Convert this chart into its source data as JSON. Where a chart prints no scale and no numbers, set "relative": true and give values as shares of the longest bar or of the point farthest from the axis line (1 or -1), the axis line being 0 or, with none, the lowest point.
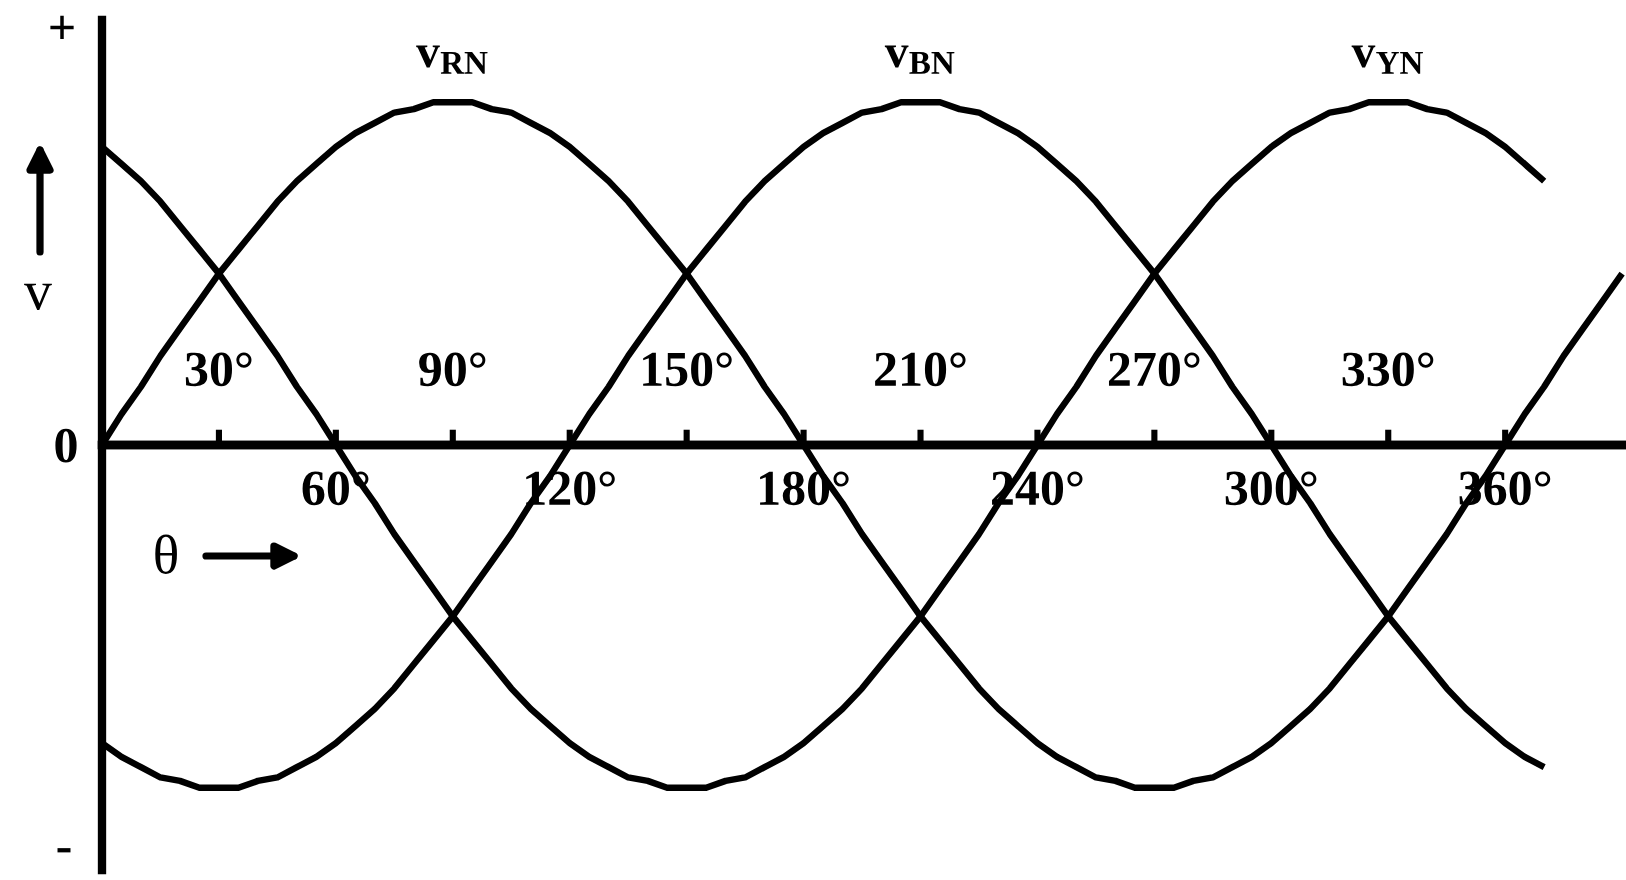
{
  "chart_data": {
    "type": "line",
    "xlabel": "θ",
    "ylabel": "v",
    "relative": true,
    "xlim": [
      0,
      391
    ],
    "xticks": [
      {
        "value": 60,
        "label": "60°"
      },
      {
        "value": 120,
        "label": "120°"
      },
      {
        "value": 180,
        "label": "180°"
      },
      {
        "value": 240,
        "label": "240°"
      },
      {
        "value": 300,
        "label": "300°"
      },
      {
        "value": 360,
        "label": "360°"
      }
    ],
    "x2lim": [
      0,
      391
    ],
    "x2ticks": [
      {
        "value": 30,
        "label": "30°"
      },
      {
        "value": 90,
        "label": "90°"
      },
      {
        "value": 150,
        "label": "150°"
      },
      {
        "value": 210,
        "label": "210°"
      },
      {
        "value": 270,
        "label": "270°"
      },
      {
        "value": 330,
        "label": "330°"
      }
    ],
    "x": [
      0,
      5,
      10,
      15,
      20,
      25,
      30,
      35,
      40,
      45,
      50,
      55,
      60,
      65,
      70,
      75,
      80,
      85,
      90,
      95,
      100,
      105,
      110,
      115,
      120,
      125,
      130,
      135,
      140,
      145,
      150,
      155,
      160,
      165,
      170,
      175,
      180,
      185,
      190,
      195,
      200,
      205,
      210,
      215,
      220,
      225,
      230,
      235,
      240,
      245,
      250,
      255,
      260,
      265,
      270,
      275,
      280,
      285,
      290,
      295,
      300,
      305,
      310,
      315,
      320,
      325,
      330,
      335,
      340,
      345,
      350,
      355,
      360,
      365,
      370,
      375,
      380,
      385,
      390
    ],
    "series": [
      {
        "name": "v$_{RN}$",
        "color": "#000000",
        "values": [
          0,
          0.09,
          0.17,
          0.26,
          0.34,
          0.42,
          0.5,
          0.57,
          0.64,
          0.71,
          0.77,
          0.82,
          0.87,
          0.91,
          0.94,
          0.97,
          0.98,
          1,
          1,
          1,
          0.98,
          0.97,
          0.94,
          0.91,
          0.87,
          0.82,
          0.77,
          0.71,
          0.64,
          0.57,
          0.5,
          0.42,
          0.34,
          0.26,
          0.17,
          0.09,
          0,
          -0.09,
          -0.17,
          -0.26,
          -0.34,
          -0.42,
          -0.5,
          -0.57,
          -0.64,
          -0.71,
          -0.77,
          -0.82,
          -0.87,
          -0.91,
          -0.94,
          -0.97,
          -0.98,
          -1,
          -1,
          -1,
          -0.98,
          -0.97,
          -0.94,
          -0.91,
          -0.87,
          -0.82,
          -0.77,
          -0.71,
          -0.64,
          -0.57,
          -0.5,
          -0.42,
          -0.34,
          -0.26,
          -0.17,
          -0.09,
          0,
          0.09,
          0.17,
          0.26,
          0.34,
          0.42,
          0.5
        ]
      },
      {
        "name": "v$_{BN}$",
        "color": "#000000",
        "values": [
          -0.87,
          -0.91,
          -0.94,
          -0.97,
          -0.98,
          -1,
          -1,
          -1,
          -0.98,
          -0.97,
          -0.94,
          -0.91,
          -0.87,
          -0.82,
          -0.77,
          -0.71,
          -0.64,
          -0.57,
          -0.5,
          -0.42,
          -0.34,
          -0.26,
          -0.17,
          -0.09,
          0,
          0.09,
          0.17,
          0.26,
          0.34,
          0.42,
          0.5,
          0.57,
          0.64,
          0.71,
          0.77,
          0.82,
          0.87,
          0.91,
          0.94,
          0.97,
          0.98,
          1,
          1,
          1,
          0.98,
          0.97,
          0.94,
          0.91,
          0.87,
          0.82,
          0.77,
          0.71,
          0.64,
          0.57,
          0.5,
          0.42,
          0.34,
          0.26,
          0.17,
          0.09,
          0,
          -0.09,
          -0.17,
          -0.26,
          -0.34,
          -0.42,
          -0.5,
          -0.57,
          -0.64,
          -0.71,
          -0.77,
          -0.82,
          -0.87,
          -0.91,
          -0.94,
          null,
          null,
          null,
          null
        ]
      },
      {
        "name": "v$_{YN}$",
        "color": "#000000",
        "values": [
          0.87,
          0.82,
          0.77,
          0.71,
          0.64,
          0.57,
          0.5,
          0.42,
          0.34,
          0.26,
          0.17,
          0.09,
          0,
          -0.09,
          -0.17,
          -0.26,
          -0.34,
          -0.42,
          -0.5,
          -0.57,
          -0.64,
          -0.71,
          -0.77,
          -0.82,
          -0.87,
          -0.91,
          -0.94,
          -0.97,
          -0.98,
          -1,
          -1,
          -1,
          -0.98,
          -0.97,
          -0.94,
          -0.91,
          -0.87,
          -0.82,
          -0.77,
          -0.71,
          -0.64,
          -0.57,
          -0.5,
          -0.42,
          -0.34,
          -0.26,
          -0.17,
          -0.09,
          0,
          0.09,
          0.17,
          0.26,
          0.34,
          0.42,
          0.5,
          0.57,
          0.64,
          0.71,
          0.77,
          0.82,
          0.87,
          0.91,
          0.94,
          0.97,
          0.98,
          1,
          1,
          1,
          0.98,
          0.97,
          0.94,
          0.91,
          0.87,
          0.82,
          0.77,
          null,
          null,
          null,
          null
        ]
      }
    ],
    "annotations": [
      "+",
      "0",
      "-"
    ]
  }
}
